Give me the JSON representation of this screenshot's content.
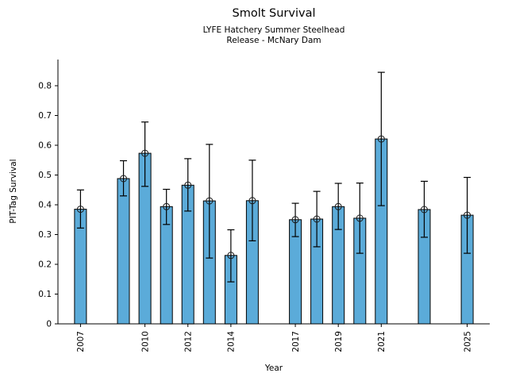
{
  "chart_data": {
    "type": "bar",
    "title": "Smolt Survival",
    "subtitle_lines": [
      "LYFE Hatchery Summer Steelhead",
      "Release - McNary Dam"
    ],
    "xlabel": "Year",
    "ylabel": "PIT-Tag Survival",
    "x": [
      2007,
      2009,
      2010,
      2011,
      2012,
      2013,
      2014,
      2015,
      2017,
      2018,
      2019,
      2020,
      2021,
      2023,
      2025
    ],
    "values": [
      0.385,
      0.488,
      0.573,
      0.394,
      0.466,
      0.413,
      0.23,
      0.414,
      0.35,
      0.352,
      0.394,
      0.355,
      0.621,
      0.384,
      0.365
    ],
    "error_low": [
      0.322,
      0.43,
      0.462,
      0.334,
      0.379,
      0.221,
      0.141,
      0.279,
      0.293,
      0.259,
      0.317,
      0.237,
      0.397,
      0.291,
      0.237
    ],
    "error_high": [
      0.45,
      0.548,
      0.678,
      0.452,
      0.555,
      0.603,
      0.316,
      0.55,
      0.405,
      0.445,
      0.472,
      0.473,
      0.845,
      0.479,
      0.492
    ],
    "x_tick_labels": [
      "2007",
      "2010",
      "2012",
      "2014",
      "2017",
      "2019",
      "2021",
      "2025"
    ],
    "y_tick_labels": [
      "0",
      "0.1",
      "0.2",
      "0.3",
      "0.4",
      "0.5",
      "0.6",
      "0.7",
      "0.8"
    ],
    "xlim": [
      2005.95,
      2026.05
    ],
    "ylim": [
      0,
      0.888
    ],
    "grid": false,
    "legend": null,
    "marker": "open-circle",
    "bar_color": "#5BABD9",
    "bar_edge_color": "#000000",
    "error_color": "#000000",
    "axis_color": "#000000",
    "background": "#FFFFFF"
  }
}
